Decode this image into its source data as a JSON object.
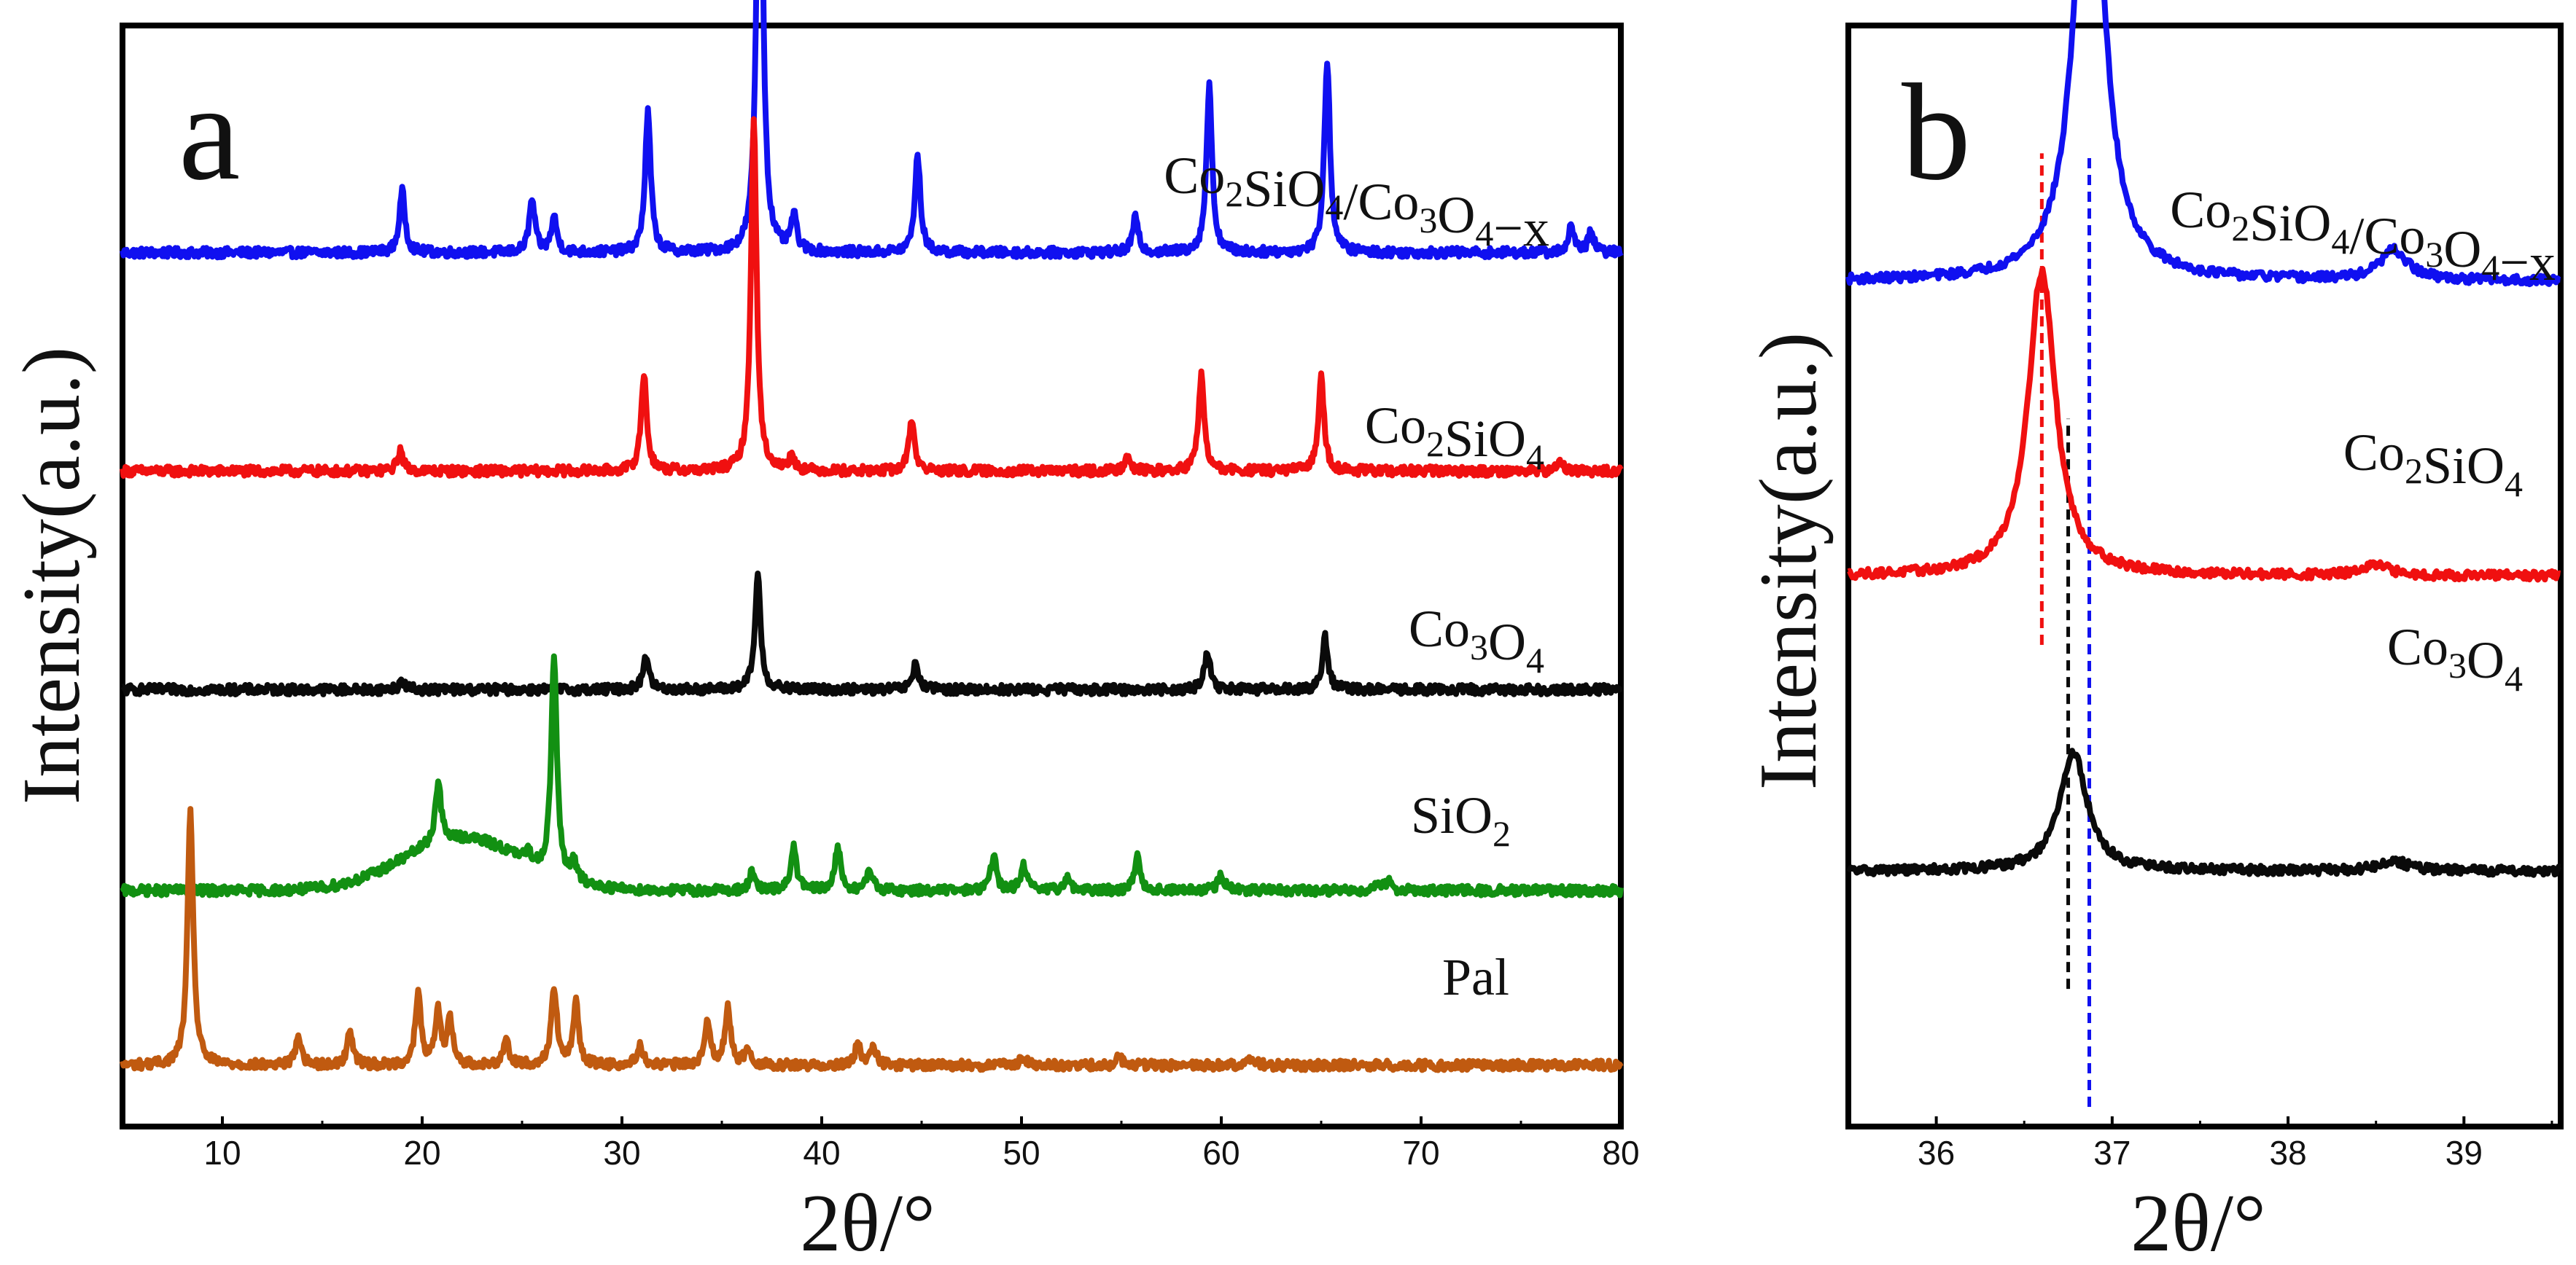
{
  "chart_data": [
    {
      "panel": "a",
      "type": "line",
      "title": "",
      "xlabel": "2θ/°",
      "ylabel": "Intensity(a.u.)",
      "xlim": [
        5,
        80
      ],
      "xticks": [
        10,
        20,
        30,
        40,
        50,
        60,
        70,
        80
      ],
      "y_ticks_shown": false,
      "series": [
        {
          "name": "Co2SiO4/Co3O4−x",
          "label_parts": [
            {
              "t": "Co"
            },
            {
              "t": "2",
              "sub": true
            },
            {
              "t": "SiO"
            },
            {
              "t": "4",
              "sub": true
            },
            {
              "t": "/Co"
            },
            {
              "t": "3",
              "sub": true
            },
            {
              "t": "O"
            },
            {
              "t": "4",
              "sub": true
            },
            {
              "t": "−x"
            }
          ],
          "color": "#1010f0",
          "baseline": 5.0,
          "peaks": [
            {
              "x": 19.0,
              "h": 0.35
            },
            {
              "x": 25.5,
              "h": 0.3
            },
            {
              "x": 26.6,
              "h": 0.2
            },
            {
              "x": 31.3,
              "h": 0.8
            },
            {
              "x": 36.9,
              "h": 3.1
            },
            {
              "x": 38.6,
              "h": 0.2
            },
            {
              "x": 44.8,
              "h": 0.55
            },
            {
              "x": 55.7,
              "h": 0.2
            },
            {
              "x": 59.4,
              "h": 0.95
            },
            {
              "x": 65.3,
              "h": 1.1
            },
            {
              "x": 77.5,
              "h": 0.15
            },
            {
              "x": 78.5,
              "h": 0.12
            }
          ]
        },
        {
          "name": "Co2SiO4",
          "label_parts": [
            {
              "t": "Co"
            },
            {
              "t": "2",
              "sub": true
            },
            {
              "t": "SiO"
            },
            {
              "t": "4",
              "sub": true
            }
          ],
          "color": "#f01010",
          "baseline": 3.75,
          "peaks": [
            {
              "x": 18.9,
              "h": 0.12
            },
            {
              "x": 31.1,
              "h": 0.55
            },
            {
              "x": 36.6,
              "h": 2.0
            },
            {
              "x": 38.5,
              "h": 0.08
            },
            {
              "x": 44.5,
              "h": 0.3
            },
            {
              "x": 55.3,
              "h": 0.1
            },
            {
              "x": 59.0,
              "h": 0.55
            },
            {
              "x": 65.0,
              "h": 0.55
            },
            {
              "x": 77.0,
              "h": 0.06
            }
          ]
        },
        {
          "name": "Co3O4",
          "label_parts": [
            {
              "t": "Co"
            },
            {
              "t": "3",
              "sub": true
            },
            {
              "t": "O"
            },
            {
              "t": "4",
              "sub": true
            }
          ],
          "color": "#0a0a0a",
          "baseline": 2.5,
          "peaks": [
            {
              "x": 19.0,
              "h": 0.05
            },
            {
              "x": 31.2,
              "h": 0.2
            },
            {
              "x": 36.8,
              "h": 0.65
            },
            {
              "x": 44.7,
              "h": 0.15
            },
            {
              "x": 59.3,
              "h": 0.22
            },
            {
              "x": 65.2,
              "h": 0.3
            }
          ]
        },
        {
          "name": "SiO2",
          "label_parts": [
            {
              "t": "SiO"
            },
            {
              "t": "2",
              "sub": true
            }
          ],
          "color": "#129012",
          "baseline": 1.35,
          "broad": {
            "x": 22.0,
            "h": 0.3
          },
          "peaks": [
            {
              "x": 20.8,
              "h": 0.35
            },
            {
              "x": 25.3,
              "h": 0.05
            },
            {
              "x": 26.6,
              "h": 1.25
            },
            {
              "x": 27.6,
              "h": 0.1
            },
            {
              "x": 36.5,
              "h": 0.1
            },
            {
              "x": 38.6,
              "h": 0.25
            },
            {
              "x": 40.8,
              "h": 0.25
            },
            {
              "x": 42.4,
              "h": 0.12
            },
            {
              "x": 48.6,
              "h": 0.2
            },
            {
              "x": 50.1,
              "h": 0.15
            },
            {
              "x": 52.3,
              "h": 0.08
            },
            {
              "x": 55.8,
              "h": 0.2
            },
            {
              "x": 60.0,
              "h": 0.1
            },
            {
              "x": 67.8,
              "h": 0.05
            },
            {
              "x": 68.4,
              "h": 0.06
            }
          ]
        },
        {
          "name": "Pal",
          "label_parts": [
            {
              "t": "Pal"
            }
          ],
          "color": "#c05a10",
          "baseline": 0.35,
          "peaks": [
            {
              "x": 8.4,
              "h": 1.45
            },
            {
              "x": 13.8,
              "h": 0.17
            },
            {
              "x": 16.4,
              "h": 0.2
            },
            {
              "x": 19.8,
              "h": 0.4
            },
            {
              "x": 20.8,
              "h": 0.3
            },
            {
              "x": 21.4,
              "h": 0.25
            },
            {
              "x": 24.2,
              "h": 0.15
            },
            {
              "x": 26.6,
              "h": 0.45
            },
            {
              "x": 27.7,
              "h": 0.35
            },
            {
              "x": 30.9,
              "h": 0.12
            },
            {
              "x": 34.3,
              "h": 0.25
            },
            {
              "x": 35.3,
              "h": 0.32
            },
            {
              "x": 36.3,
              "h": 0.1
            },
            {
              "x": 41.8,
              "h": 0.12
            },
            {
              "x": 42.6,
              "h": 0.1
            },
            {
              "x": 50.1,
              "h": 0.05
            },
            {
              "x": 54.9,
              "h": 0.05
            },
            {
              "x": 61.5,
              "h": 0.05
            }
          ]
        }
      ]
    },
    {
      "panel": "b",
      "type": "line",
      "title": "",
      "xlabel": "2θ/°",
      "ylabel": "Intensity(a.u.)",
      "xlim": [
        35.5,
        39.55
      ],
      "xticks": [
        36,
        37,
        38,
        39
      ],
      "y_ticks_shown": false,
      "series": [
        {
          "name": "Co2SiO4/Co3O4−x",
          "label_parts": [
            {
              "t": "Co"
            },
            {
              "t": "2",
              "sub": true
            },
            {
              "t": "SiO"
            },
            {
              "t": "4",
              "sub": true
            },
            {
              "t": "/Co"
            },
            {
              "t": "3",
              "sub": true
            },
            {
              "t": "O"
            },
            {
              "t": "4",
              "sub": true
            },
            {
              "t": "−x"
            }
          ],
          "color": "#1010f0",
          "baseline": 4.3,
          "peaks": [
            {
              "x": 36.87,
              "h": 2.6
            },
            {
              "x": 38.6,
              "h": 0.15
            }
          ]
        },
        {
          "name": "Co2SiO4",
          "label_parts": [
            {
              "t": "Co"
            },
            {
              "t": "2",
              "sub": true
            },
            {
              "t": "SiO"
            },
            {
              "t": "4",
              "sub": true
            }
          ],
          "color": "#f01010",
          "baseline": 2.8,
          "peaks": [
            {
              "x": 36.6,
              "h": 1.55
            },
            {
              "x": 38.5,
              "h": 0.05
            }
          ]
        },
        {
          "name": "Co3O4",
          "label_parts": [
            {
              "t": "Co"
            },
            {
              "t": "3",
              "sub": true
            },
            {
              "t": "O"
            },
            {
              "t": "4",
              "sub": true
            }
          ],
          "color": "#0a0a0a",
          "baseline": 1.3,
          "peaks": [
            {
              "x": 36.78,
              "h": 0.6
            },
            {
              "x": 38.6,
              "h": 0.05
            }
          ]
        }
      ],
      "reference_lines": [
        {
          "x": 36.6,
          "color": "#f01010",
          "y_from": 2.45,
          "y_to": 4.95
        },
        {
          "x": 36.87,
          "color": "#1010f0",
          "y_from": 0.1,
          "y_to": 4.95
        },
        {
          "x": 36.75,
          "color": "#0a0a0a",
          "y_from": 0.7,
          "y_to": 3.6
        }
      ]
    }
  ],
  "panel_letters": [
    "a",
    "b"
  ]
}
